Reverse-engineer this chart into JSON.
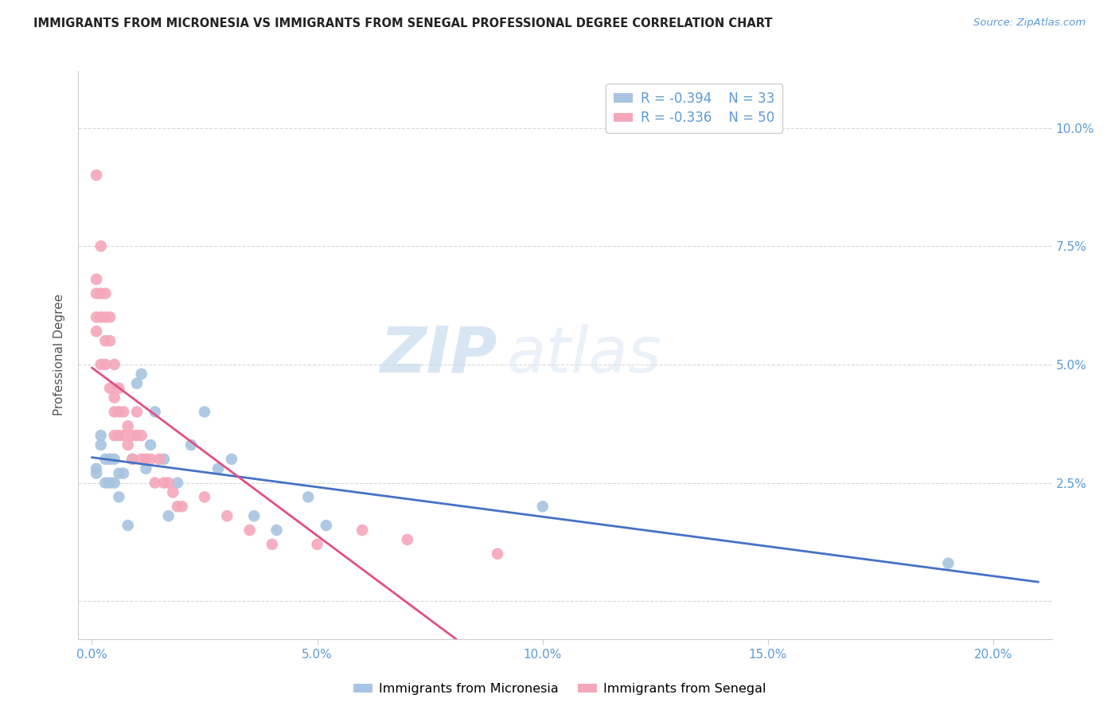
{
  "title": "IMMIGRANTS FROM MICRONESIA VS IMMIGRANTS FROM SENEGAL PROFESSIONAL DEGREE CORRELATION CHART",
  "source": "Source: ZipAtlas.com",
  "ylabel_label": "Professional Degree",
  "x_ticks": [
    0.0,
    0.05,
    0.1,
    0.15,
    0.2
  ],
  "x_tick_labels": [
    "0.0%",
    "5.0%",
    "10.0%",
    "15.0%",
    "20.0%"
  ],
  "y_ticks": [
    0.0,
    0.025,
    0.05,
    0.075,
    0.1
  ],
  "y_tick_labels": [
    "",
    "2.5%",
    "5.0%",
    "7.5%",
    "10.0%"
  ],
  "xlim": [
    -0.003,
    0.213
  ],
  "ylim": [
    -0.008,
    0.112
  ],
  "micronesia_color": "#a8c4e0",
  "senegal_color": "#f4a7b9",
  "trend_micronesia_color": "#4472c4",
  "trend_senegal_color": "#e05080",
  "legend_R_micronesia": "R = -0.394",
  "legend_N_micronesia": "N = 33",
  "legend_R_senegal": "R = -0.336",
  "legend_N_senegal": "N = 50",
  "watermark_zip": "ZIP",
  "watermark_atlas": "atlas",
  "micronesia_x": [
    0.001,
    0.001,
    0.002,
    0.002,
    0.003,
    0.003,
    0.004,
    0.004,
    0.005,
    0.005,
    0.006,
    0.006,
    0.007,
    0.008,
    0.009,
    0.01,
    0.011,
    0.012,
    0.013,
    0.014,
    0.016,
    0.017,
    0.019,
    0.022,
    0.025,
    0.028,
    0.031,
    0.036,
    0.041,
    0.048,
    0.052,
    0.1,
    0.19
  ],
  "micronesia_y": [
    0.028,
    0.027,
    0.035,
    0.033,
    0.03,
    0.025,
    0.03,
    0.025,
    0.03,
    0.025,
    0.027,
    0.022,
    0.027,
    0.016,
    0.03,
    0.046,
    0.048,
    0.028,
    0.033,
    0.04,
    0.03,
    0.018,
    0.025,
    0.033,
    0.04,
    0.028,
    0.03,
    0.018,
    0.015,
    0.022,
    0.016,
    0.02,
    0.008
  ],
  "senegal_x": [
    0.001,
    0.001,
    0.001,
    0.001,
    0.001,
    0.002,
    0.002,
    0.002,
    0.002,
    0.003,
    0.003,
    0.003,
    0.003,
    0.004,
    0.004,
    0.004,
    0.005,
    0.005,
    0.005,
    0.005,
    0.006,
    0.006,
    0.006,
    0.007,
    0.007,
    0.008,
    0.008,
    0.009,
    0.009,
    0.01,
    0.01,
    0.011,
    0.011,
    0.012,
    0.013,
    0.014,
    0.015,
    0.016,
    0.017,
    0.018,
    0.019,
    0.02,
    0.025,
    0.03,
    0.035,
    0.04,
    0.05,
    0.06,
    0.07,
    0.09
  ],
  "senegal_y": [
    0.09,
    0.068,
    0.065,
    0.06,
    0.057,
    0.075,
    0.065,
    0.06,
    0.05,
    0.065,
    0.06,
    0.055,
    0.05,
    0.06,
    0.055,
    0.045,
    0.05,
    0.043,
    0.04,
    0.035,
    0.045,
    0.04,
    0.035,
    0.04,
    0.035,
    0.037,
    0.033,
    0.035,
    0.03,
    0.04,
    0.035,
    0.035,
    0.03,
    0.03,
    0.03,
    0.025,
    0.03,
    0.025,
    0.025,
    0.023,
    0.02,
    0.02,
    0.022,
    0.018,
    0.015,
    0.012,
    0.012,
    0.015,
    0.013,
    0.01
  ],
  "grid_color": "#d8d8d8",
  "spine_color": "#cccccc",
  "tick_color": "#5b9bd5",
  "title_color": "#222222",
  "ylabel_color": "#555555",
  "legend_text_color": "#5b9bd5"
}
